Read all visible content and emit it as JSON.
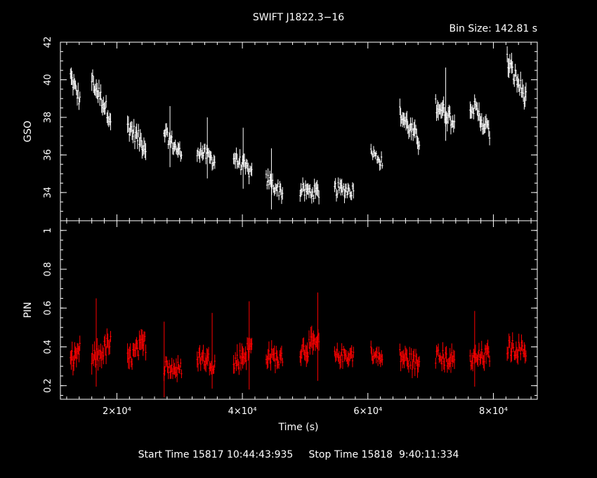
{
  "chart_data": {
    "type": "line",
    "title": "SWIFT J1822.3−16",
    "bin_size_label": "Bin Size:  142.81 s",
    "xlabel": "Time (s)",
    "footer": "Start Time 15817 10:44:43:935     Stop Time 15818  9:40:11:334",
    "xlim": [
      11000,
      87000
    ],
    "x_ticks": [
      {
        "value": 20000,
        "label": "2×10⁴"
      },
      {
        "value": 40000,
        "label": "4×10⁴"
      },
      {
        "value": 60000,
        "label": "6×10⁴"
      },
      {
        "value": 80000,
        "label": "8×10⁴"
      }
    ],
    "panels": [
      {
        "name": "GSO",
        "ylabel": "GSO",
        "ylim": [
          32.5,
          42
        ],
        "y_ticks": [
          34,
          36,
          38,
          40,
          42
        ],
        "color": "#ffffff",
        "segments": [
          {
            "t_start": 12600,
            "t_end": 14100,
            "y_start": 40.2,
            "y_end": 38.9,
            "noise": 0.55
          },
          {
            "t_start": 16000,
            "t_end": 19000,
            "y_start": 40.0,
            "y_end": 38.0,
            "noise": 0.6
          },
          {
            "t_start": 21700,
            "t_end": 24600,
            "y_start": 37.6,
            "y_end": 36.4,
            "noise": 0.6
          },
          {
            "t_start": 27500,
            "t_end": 30300,
            "y_start": 37.2,
            "y_end": 36.0,
            "noise": 0.5
          },
          {
            "t_start": 32800,
            "t_end": 35600,
            "y_start": 36.3,
            "y_end": 35.7,
            "noise": 0.5
          },
          {
            "t_start": 38600,
            "t_end": 41500,
            "y_start": 35.9,
            "y_end": 35.0,
            "noise": 0.5
          },
          {
            "t_start": 43800,
            "t_end": 46400,
            "y_start": 34.7,
            "y_end": 34.0,
            "noise": 0.5
          },
          {
            "t_start": 49200,
            "t_end": 52200,
            "y_start": 34.1,
            "y_end": 34.0,
            "noise": 0.5
          },
          {
            "t_start": 54700,
            "t_end": 57700,
            "y_start": 34.2,
            "y_end": 34.1,
            "noise": 0.5
          },
          {
            "t_start": 60500,
            "t_end": 62300,
            "y_start": 36.2,
            "y_end": 35.6,
            "noise": 0.4
          },
          {
            "t_start": 65100,
            "t_end": 68200,
            "y_start": 38.2,
            "y_end": 36.7,
            "noise": 0.6
          },
          {
            "t_start": 70800,
            "t_end": 73800,
            "y_start": 38.7,
            "y_end": 37.8,
            "noise": 0.6
          },
          {
            "t_start": 76300,
            "t_end": 79400,
            "y_start": 38.8,
            "y_end": 37.2,
            "noise": 0.6
          },
          {
            "t_start": 82200,
            "t_end": 85200,
            "y_start": 41.0,
            "y_end": 39.0,
            "noise": 0.65
          }
        ]
      },
      {
        "name": "PIN",
        "ylabel": "PIN",
        "ylim": [
          0.13,
          1.05
        ],
        "y_ticks": [
          0.2,
          0.4,
          0.6,
          0.8,
          1
        ],
        "color": "#ff0000",
        "segments": [
          {
            "t_start": 12600,
            "t_end": 14100,
            "y_start": 0.33,
            "y_end": 0.38,
            "noise": 0.06
          },
          {
            "t_start": 16000,
            "t_end": 19000,
            "y_start": 0.32,
            "y_end": 0.42,
            "noise": 0.07
          },
          {
            "t_start": 21700,
            "t_end": 24600,
            "y_start": 0.33,
            "y_end": 0.42,
            "noise": 0.07
          },
          {
            "t_start": 27500,
            "t_end": 30300,
            "y_start": 0.3,
            "y_end": 0.28,
            "noise": 0.06
          },
          {
            "t_start": 32800,
            "t_end": 35600,
            "y_start": 0.35,
            "y_end": 0.32,
            "noise": 0.06
          },
          {
            "t_start": 38600,
            "t_end": 41500,
            "y_start": 0.31,
            "y_end": 0.4,
            "noise": 0.07
          },
          {
            "t_start": 43800,
            "t_end": 46400,
            "y_start": 0.36,
            "y_end": 0.33,
            "noise": 0.06
          },
          {
            "t_start": 49200,
            "t_end": 52200,
            "y_start": 0.38,
            "y_end": 0.42,
            "noise": 0.07
          },
          {
            "t_start": 54700,
            "t_end": 57700,
            "y_start": 0.35,
            "y_end": 0.36,
            "noise": 0.05
          },
          {
            "t_start": 60500,
            "t_end": 62300,
            "y_start": 0.37,
            "y_end": 0.33,
            "noise": 0.05
          },
          {
            "t_start": 65100,
            "t_end": 68200,
            "y_start": 0.35,
            "y_end": 0.31,
            "noise": 0.06
          },
          {
            "t_start": 70800,
            "t_end": 73800,
            "y_start": 0.35,
            "y_end": 0.33,
            "noise": 0.06
          },
          {
            "t_start": 76300,
            "t_end": 79400,
            "y_start": 0.33,
            "y_end": 0.36,
            "noise": 0.06
          },
          {
            "t_start": 82200,
            "t_end": 85200,
            "y_start": 0.4,
            "y_end": 0.38,
            "noise": 0.06
          }
        ]
      }
    ]
  }
}
